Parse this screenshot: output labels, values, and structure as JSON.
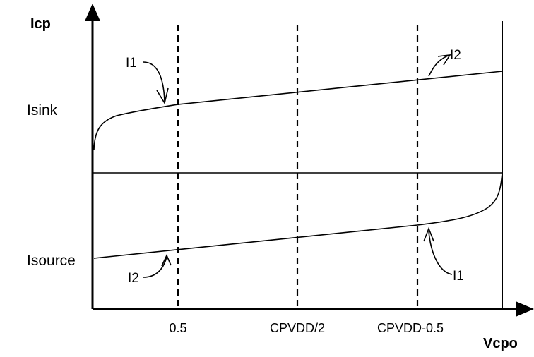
{
  "axes": {
    "y_title": "Icp",
    "x_title": "Vcpo"
  },
  "levels": {
    "upper": "Isink",
    "lower": "Isource"
  },
  "x_ticks": [
    "0.5",
    "CPVDD/2",
    "CPVDD-0.5"
  ],
  "annotations": {
    "sink_left": "I1",
    "sink_right": "I2",
    "source_left": "I2",
    "source_right": "I1"
  }
}
